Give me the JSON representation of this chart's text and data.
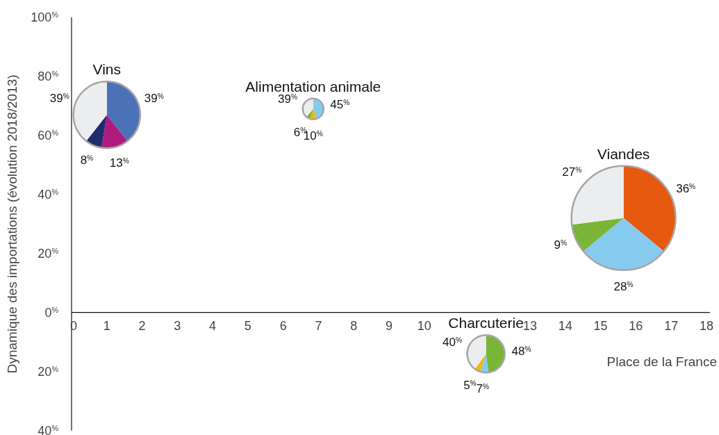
{
  "chart_data": [
    {
      "type": "bubble",
      "xlabel": "Place de la France",
      "ylabel": "Dynamique des importations (évolution 2018/2013)",
      "x": [
        1.0,
        6.85,
        15.65,
        11.75
      ],
      "values": [
        67,
        69,
        32,
        -14
      ],
      "sizes": [
        0.41,
        0.04,
        1,
        0.13
      ],
      "color": "#a6a6a6",
      "xlim": [
        0,
        18.1
      ],
      "ylim": [
        -40,
        100
      ],
      "xticks": [
        0,
        1,
        2,
        3,
        4,
        5,
        6,
        7,
        8,
        9,
        10,
        13,
        14,
        15,
        16,
        17,
        18
      ],
      "yticks": [
        {
          "value": -40,
          "label": "40$^{%}$"
        },
        {
          "value": -20,
          "label": "20$^{%}$"
        },
        {
          "value": 0,
          "label": "0$^{%}$"
        },
        {
          "value": 20,
          "label": "20$^{%}$"
        },
        {
          "value": 40,
          "label": "40$^{%}$"
        },
        {
          "value": 60,
          "label": "60$^{%}$"
        },
        {
          "value": 80,
          "label": "80$^{%}$"
        },
        {
          "value": 100,
          "label": "100$^{%}$"
        }
      ],
      "grid": false
    },
    {
      "type": "pie",
      "title": "Vins",
      "categories": [
        null,
        null,
        null,
        null
      ],
      "values": [
        39,
        13,
        8,
        39
      ],
      "colors": [
        "#4a72b8",
        "#b0187f",
        "#1f2a6e",
        "#eeeff1"
      ],
      "value_labels": [
        "39$^{%}$",
        "13$^{%}$",
        "8$^{%}$",
        "39$^{%}$"
      ]
    },
    {
      "type": "pie",
      "title": "Alimentation animale",
      "categories": [
        null,
        null,
        null,
        null
      ],
      "values": [
        45,
        10,
        6,
        39
      ],
      "colors": [
        "#86cdf0",
        "#f2b800",
        "#7ab636",
        "#eeeff1"
      ],
      "value_labels": [
        "45$^{%}$",
        "10$^{%}$",
        "6$^{%}$",
        "39$^{%}$"
      ]
    },
    {
      "type": "pie",
      "title": "Viandes",
      "categories": [
        null,
        null,
        null,
        null
      ],
      "values": [
        36,
        28,
        9,
        27
      ],
      "colors": [
        "#e8580c",
        "#86cdf0",
        "#7ab636",
        "#eeeff1"
      ],
      "value_labels": [
        "36$^{%}$",
        "28$^{%}$",
        "9$^{%}$",
        "27$^{%}$"
      ]
    },
    {
      "type": "pie",
      "title": "Charcuterie",
      "categories": [
        null,
        null,
        null,
        null
      ],
      "values": [
        48,
        7,
        5,
        40
      ],
      "colors": [
        "#7ab636",
        "#86cdf0",
        "#f2b800",
        "#eeeff1"
      ],
      "value_labels": [
        "48$^{%}$",
        "7$^{%}$",
        "5$^{%}$",
        "40$^{%}$"
      ]
    }
  ]
}
